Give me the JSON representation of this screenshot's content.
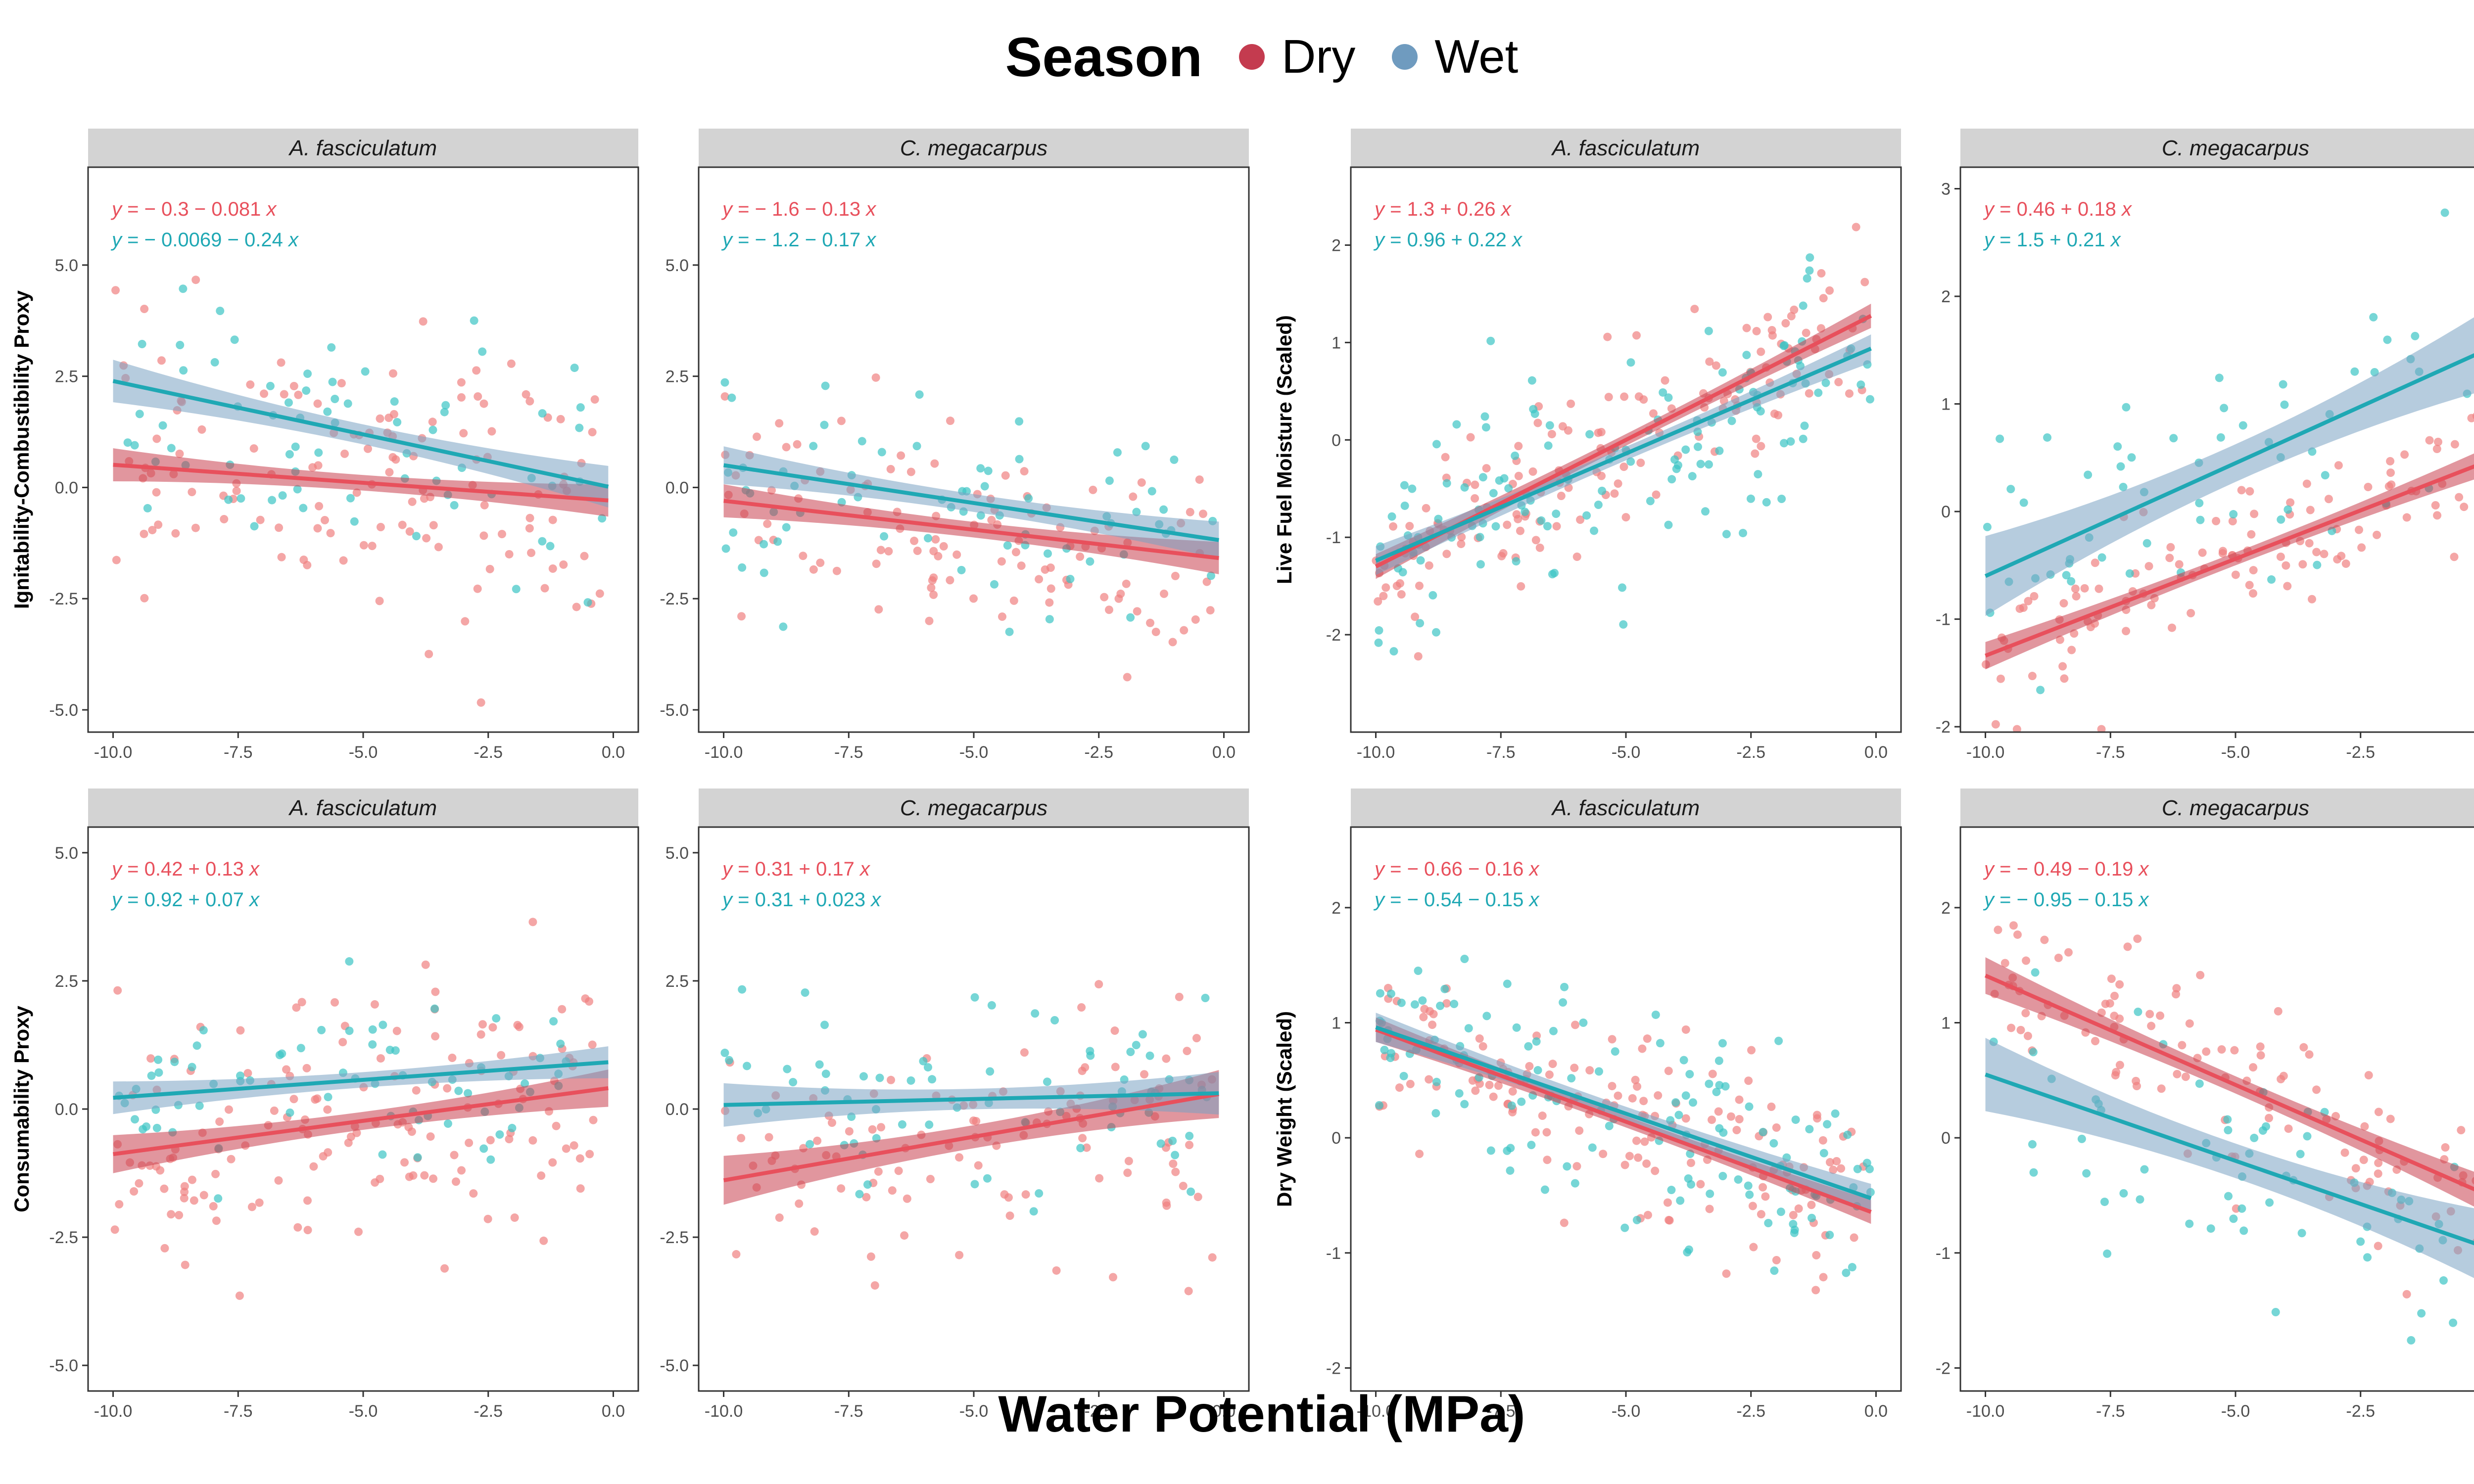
{
  "legend": {
    "title": "Season",
    "items": [
      {
        "label": "Dry",
        "color": "#c43b4f"
      },
      {
        "label": "Wet",
        "color": "#6f9bbf"
      }
    ]
  },
  "x_axis_title": "Water Potential (MPa)",
  "colors": {
    "dry_point": "#f08080",
    "wet_point": "#3cc4c4",
    "dry_line": "#e8505c",
    "wet_line": "#1fa8b4",
    "dry_band": "#c9404f",
    "wet_band": "#7aa3c2",
    "strip_bg": "#d3d3d3"
  },
  "chart_data": [
    {
      "type": "scatter",
      "panel": "top-left",
      "strip": "A. fasciculatum",
      "ylabel": "Ignitability-Combustibility Proxy",
      "xlim": [
        -10.5,
        0.5
      ],
      "ylim": [
        -5.5,
        7.2
      ],
      "xticks": [
        -10.0,
        -7.5,
        -5.0,
        -2.5,
        0.0
      ],
      "yticks": [
        -5.0,
        -2.5,
        0.0,
        2.5,
        5.0
      ],
      "xtick_labels": [
        "-10.0",
        "-7.5",
        "-5.0",
        "-2.5",
        "0.0"
      ],
      "ytick_labels": [
        "-5.0",
        "-2.5",
        "0.0",
        "2.5",
        "5.0"
      ],
      "series": [
        {
          "name": "Dry",
          "equation": "y = − 0.3 − 0.081 x",
          "intercept": -0.3,
          "slope": -0.081,
          "ci": 0.35,
          "n": 130,
          "sd": 1.6,
          "xrange": [
            -10,
            -0.2
          ],
          "seed": 11
        },
        {
          "name": "Wet",
          "equation": "y = − 0.0069 − 0.24 x",
          "intercept": -0.0069,
          "slope": -0.24,
          "ci": 0.45,
          "n": 70,
          "sd": 1.3,
          "xrange": [
            -10,
            -0.2
          ],
          "seed": 12
        }
      ]
    },
    {
      "type": "scatter",
      "panel": "top-second",
      "strip": "C. megacarpus",
      "ylabel": "",
      "xlim": [
        -10.5,
        0.5
      ],
      "ylim": [
        -5.5,
        7.2
      ],
      "xticks": [
        -10.0,
        -7.5,
        -5.0,
        -2.5,
        0.0
      ],
      "yticks": [
        -5.0,
        -2.5,
        0.0,
        2.5,
        5.0
      ],
      "xtick_labels": [
        "-10.0",
        "-7.5",
        "-5.0",
        "-2.5",
        "0.0"
      ],
      "ytick_labels": [
        "-5.0",
        "-2.5",
        "0.0",
        "2.5",
        "5.0"
      ],
      "series": [
        {
          "name": "Dry",
          "equation": "y = − 1.6 − 0.13 x",
          "intercept": -1.6,
          "slope": -0.13,
          "ci": 0.35,
          "n": 110,
          "sd": 1.2,
          "xrange": [
            -10,
            -0.2
          ],
          "seed": 21
        },
        {
          "name": "Wet",
          "equation": "y = − 1.2 − 0.17 x",
          "intercept": -1.2,
          "slope": -0.17,
          "ci": 0.4,
          "n": 70,
          "sd": 1.1,
          "xrange": [
            -10,
            -0.2
          ],
          "seed": 22
        }
      ]
    },
    {
      "type": "scatter",
      "panel": "top-third",
      "strip": "A. fasciculatum",
      "ylabel": "Live Fuel Moisture (Scaled)",
      "xlim": [
        -10.5,
        0.5
      ],
      "ylim": [
        -3.0,
        2.8
      ],
      "xticks": [
        -10.0,
        -7.5,
        -5.0,
        -2.5,
        0.0
      ],
      "yticks": [
        -2,
        -1,
        0,
        1,
        2
      ],
      "xtick_labels": [
        "-10.0",
        "-7.5",
        "-5.0",
        "-2.5",
        "0.0"
      ],
      "ytick_labels": [
        "-2",
        "-1",
        "0",
        "1",
        "2"
      ],
      "series": [
        {
          "name": "Dry",
          "equation": "y = 1.3 + 0.26 x",
          "intercept": 1.3,
          "slope": 0.26,
          "ci": 0.12,
          "n": 150,
          "sd": 0.4,
          "xrange": [
            -10,
            -0.1
          ],
          "seed": 31
        },
        {
          "name": "Wet",
          "equation": "y = 0.96 + 0.22 x",
          "intercept": 0.96,
          "slope": 0.22,
          "ci": 0.14,
          "n": 130,
          "sd": 0.6,
          "xrange": [
            -10,
            -0.1
          ],
          "seed": 32
        }
      ]
    },
    {
      "type": "scatter",
      "panel": "top-right",
      "strip": "C. megacarpus",
      "ylabel": "",
      "xlim": [
        -10.5,
        0.5
      ],
      "ylim": [
        -2.05,
        3.2
      ],
      "xticks": [
        -10.0,
        -7.5,
        -5.0,
        -2.5,
        0.0
      ],
      "yticks": [
        -2,
        -1,
        0,
        1,
        2,
        3
      ],
      "xtick_labels": [
        "-10.0",
        "-7.5",
        "-5.0",
        "-2.5",
        "0.0"
      ],
      "ytick_labels": [
        "-2",
        "-1",
        "0",
        "1",
        "2",
        "3"
      ],
      "series": [
        {
          "name": "Dry",
          "equation": "y = 0.46 + 0.18 x",
          "intercept": 0.46,
          "slope": 0.18,
          "ci": 0.12,
          "n": 110,
          "sd": 0.3,
          "xrange": [
            -10,
            -0.1
          ],
          "seed": 41
        },
        {
          "name": "Wet",
          "equation": "y = 1.5 + 0.21 x",
          "intercept": 1.5,
          "slope": 0.21,
          "ci": 0.35,
          "n": 60,
          "sd": 0.7,
          "xrange": [
            -10,
            -0.1
          ],
          "seed": 42
        }
      ]
    },
    {
      "type": "scatter",
      "panel": "bottom-left",
      "strip": "A. fasciculatum",
      "ylabel": "Consumability Proxy",
      "xlim": [
        -10.5,
        0.5
      ],
      "ylim": [
        -5.5,
        5.5
      ],
      "xticks": [
        -10.0,
        -7.5,
        -5.0,
        -2.5,
        0.0
      ],
      "yticks": [
        -5.0,
        -2.5,
        0.0,
        2.5,
        5.0
      ],
      "xtick_labels": [
        "-10.0",
        "-7.5",
        "-5.0",
        "-2.5",
        "0.0"
      ],
      "ytick_labels": [
        "-5.0",
        "-2.5",
        "0.0",
        "2.5",
        "5.0"
      ],
      "series": [
        {
          "name": "Dry",
          "equation": "y = 0.42 + 0.13 x",
          "intercept": 0.42,
          "slope": 0.13,
          "ci": 0.35,
          "n": 150,
          "sd": 1.2,
          "xrange": [
            -10,
            -0.2
          ],
          "seed": 51
        },
        {
          "name": "Wet",
          "equation": "y = 0.92 + 0.07 x",
          "intercept": 0.92,
          "slope": 0.07,
          "ci": 0.3,
          "n": 70,
          "sd": 0.7,
          "xrange": [
            -10,
            -0.2
          ],
          "seed": 52
        }
      ]
    },
    {
      "type": "scatter",
      "panel": "bottom-second",
      "strip": "C. megacarpus",
      "ylabel": "",
      "xlim": [
        -10.5,
        0.5
      ],
      "ylim": [
        -5.5,
        5.5
      ],
      "xticks": [
        -10.0,
        -7.5,
        -5.0,
        -2.5,
        0.0
      ],
      "yticks": [
        -5.0,
        -2.5,
        0.0,
        2.5,
        5.0
      ],
      "xtick_labels": [
        "-10.0",
        "-7.5",
        "-5.0",
        "-2.5",
        "0.0"
      ],
      "ytick_labels": [
        "-5.0",
        "-2.5",
        "0.0",
        "2.5",
        "5.0"
      ],
      "series": [
        {
          "name": "Dry",
          "equation": "y = 0.31 + 0.17 x",
          "intercept": 0.31,
          "slope": 0.17,
          "ci": 0.45,
          "n": 110,
          "sd": 1.2,
          "xrange": [
            -10,
            -0.2
          ],
          "seed": 61
        },
        {
          "name": "Wet",
          "equation": "y = 0.31 + 0.023 x",
          "intercept": 0.31,
          "slope": 0.023,
          "ci": 0.4,
          "n": 70,
          "sd": 1.1,
          "xrange": [
            -10,
            -0.2
          ],
          "seed": 62
        }
      ]
    },
    {
      "type": "scatter",
      "panel": "bottom-third",
      "strip": "A. fasciculatum",
      "ylabel": "Dry Weight (Scaled)",
      "xlim": [
        -10.5,
        0.5
      ],
      "ylim": [
        -2.2,
        2.7
      ],
      "xticks": [
        -10.0,
        -7.5,
        -5.0,
        -2.5,
        0.0
      ],
      "yticks": [
        -2,
        -1,
        0,
        1,
        2
      ],
      "xtick_labels": [
        "-10.0",
        "-7.5",
        "-5.0",
        "-2.5",
        "0.0"
      ],
      "ytick_labels": [
        "-2",
        "-1",
        "0",
        "1",
        "2"
      ],
      "series": [
        {
          "name": "Dry",
          "equation": "y = − 0.66 − 0.16 x",
          "intercept": -0.66,
          "slope": -0.16,
          "ci": 0.1,
          "n": 150,
          "sd": 0.45,
          "xrange": [
            -10,
            -0.1
          ],
          "seed": 71
        },
        {
          "name": "Wet",
          "equation": "y = − 0.54 − 0.15 x",
          "intercept": -0.54,
          "slope": -0.15,
          "ci": 0.12,
          "n": 130,
          "sd": 0.5,
          "xrange": [
            -10,
            -0.1
          ],
          "seed": 72
        }
      ]
    },
    {
      "type": "scatter",
      "panel": "bottom-right",
      "strip": "C. megacarpus",
      "ylabel": "",
      "xlim": [
        -10.5,
        0.5
      ],
      "ylim": [
        -2.2,
        2.7
      ],
      "xticks": [
        -10.0,
        -7.5,
        -5.0,
        -2.5,
        0.0
      ],
      "yticks": [
        -2,
        -1,
        0,
        1,
        2
      ],
      "xtick_labels": [
        "-10.0",
        "-7.5",
        "-5.0",
        "-2.5",
        "0.0"
      ],
      "ytick_labels": [
        "-2",
        "-1",
        "0",
        "1",
        "2"
      ],
      "series": [
        {
          "name": "Dry",
          "equation": "y = − 0.49 − 0.19 x",
          "intercept": -0.49,
          "slope": -0.19,
          "ci": 0.15,
          "n": 110,
          "sd": 0.4,
          "xrange": [
            -10,
            -0.1
          ],
          "seed": 81
        },
        {
          "name": "Wet",
          "equation": "y = − 0.95 − 0.15 x",
          "intercept": -0.95,
          "slope": -0.15,
          "ci": 0.3,
          "n": 60,
          "sd": 0.55,
          "xrange": [
            -10,
            -0.1
          ],
          "seed": 82
        }
      ]
    }
  ]
}
